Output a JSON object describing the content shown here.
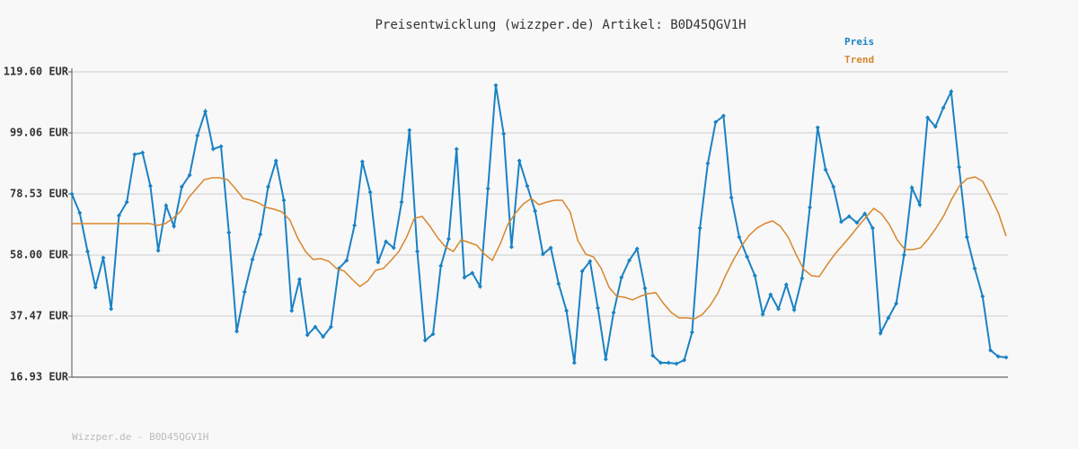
{
  "chart_data": {
    "type": "line",
    "title": "Preisentwicklung (wizzper.de) Artikel: B0D45QGV1H",
    "footer": "Wizzper.de - B0D45QGV1H",
    "grid": true,
    "legend": "top-right",
    "ylim": [
      16.93,
      119.6
    ],
    "yticks": [
      {
        "value": 16.93,
        "label": "16.93 EUR"
      },
      {
        "value": 37.47,
        "label": "37.47 EUR"
      },
      {
        "value": 58.0,
        "label": "58.00 EUR"
      },
      {
        "value": 78.53,
        "label": "78.53 EUR"
      },
      {
        "value": 99.06,
        "label": "99.06 EUR"
      },
      {
        "value": 119.6,
        "label": "119.60 EUR"
      }
    ],
    "series": [
      {
        "name": "Preis",
        "color": "#1a82c4",
        "markers": true,
        "values": [
          78.53,
          72.19,
          59.21,
          47.13,
          57.09,
          39.88,
          71.28,
          75.81,
          91.82,
          92.42,
          81.25,
          59.51,
          74.61,
          67.66,
          80.95,
          84.87,
          98.16,
          106.31,
          93.63,
          94.54,
          65.55,
          32.33,
          45.62,
          56.49,
          64.94,
          80.95,
          89.7,
          76.42,
          39.28,
          49.84,
          31.12,
          33.84,
          30.52,
          33.84,
          53.47,
          56.19,
          67.96,
          89.4,
          79.14,
          55.58,
          62.53,
          60.41,
          75.81,
          99.97,
          59.21,
          29.31,
          31.42,
          54.37,
          63.43,
          93.63,
          50.45,
          51.96,
          47.43,
          80.34,
          115.07,
          98.76,
          60.72,
          89.7,
          81.25,
          72.79,
          58.3,
          60.41,
          48.34,
          39.28,
          21.76,
          52.56,
          55.88,
          40.18,
          22.97,
          38.67,
          50.45,
          56.19,
          60.11,
          46.83,
          24.18,
          21.76,
          21.76,
          21.46,
          22.67,
          32.03,
          67.06,
          88.8,
          102.69,
          104.8,
          77.32,
          64.04,
          57.39,
          51.05,
          38.07,
          44.71,
          39.88,
          48.03,
          39.58,
          50.15,
          74.0,
          100.88,
          86.69,
          80.95,
          69.17,
          70.98,
          68.87,
          71.89,
          67.06,
          31.73,
          36.86,
          41.69,
          58.0,
          80.65,
          74.91,
          104.2,
          101.18,
          107.52,
          112.96,
          87.59,
          64.04,
          53.47,
          44.11,
          26.0,
          23.88,
          23.57
        ]
      },
      {
        "name": "Trend",
        "color": "#d9862a",
        "markers": false,
        "values": [
          68.57,
          68.57,
          68.57,
          68.57,
          68.57,
          68.57,
          68.57,
          68.57,
          68.57,
          68.57,
          68.57,
          67.96,
          68.57,
          70.38,
          72.79,
          77.32,
          80.34,
          83.36,
          83.97,
          83.97,
          83.36,
          80.34,
          77.02,
          76.42,
          75.51,
          74.0,
          73.4,
          72.49,
          69.77,
          63.74,
          59.21,
          56.49,
          56.79,
          55.88,
          53.47,
          52.56,
          49.84,
          47.43,
          49.24,
          52.86,
          53.47,
          56.19,
          59.21,
          64.04,
          70.38,
          70.98,
          67.66,
          63.74,
          60.72,
          59.21,
          63.13,
          62.23,
          61.32,
          58.3,
          56.19,
          61.62,
          68.27,
          72.19,
          75.21,
          77.02,
          74.91,
          75.81,
          76.42,
          76.42,
          72.49,
          62.83,
          58.3,
          57.39,
          53.47,
          47.13,
          44.11,
          43.81,
          42.9,
          44.11,
          45.01,
          45.32,
          41.69,
          38.67,
          36.86,
          36.86,
          36.56,
          38.07,
          41.09,
          45.32,
          51.35,
          56.49,
          61.02,
          64.64,
          67.06,
          68.57,
          69.47,
          67.66,
          64.04,
          58.3,
          53.17,
          51.05,
          50.75,
          54.68,
          58.3,
          61.32,
          64.34,
          67.66,
          70.68,
          73.7,
          71.89,
          68.27,
          63.13,
          59.81,
          59.81,
          60.41,
          63.43,
          67.06,
          71.28,
          76.72,
          81.25,
          83.67,
          84.27,
          82.76,
          77.63,
          72.19,
          64.34
        ]
      }
    ]
  }
}
